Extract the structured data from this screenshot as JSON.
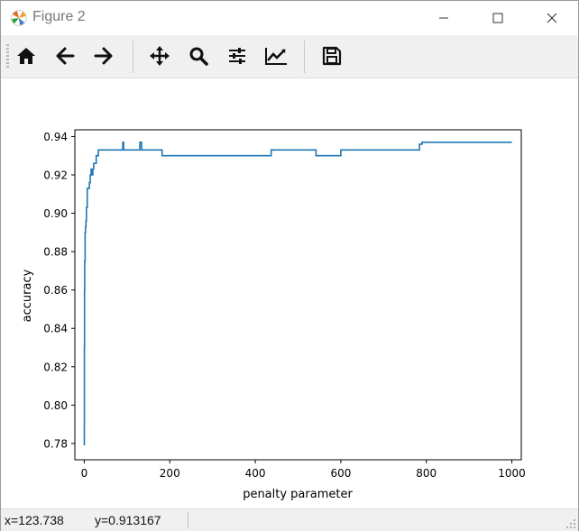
{
  "window": {
    "title": "Figure 2",
    "controls": [
      "minimize-icon",
      "maximize-icon",
      "close-icon"
    ]
  },
  "toolbar": {
    "tools": [
      {
        "icon": "home-icon",
        "label": "Home"
      },
      {
        "icon": "back-arrow-icon",
        "label": "Back"
      },
      {
        "icon": "forward-arrow-icon",
        "label": "Forward"
      },
      {
        "icon": "pan-move-icon",
        "label": "Pan"
      },
      {
        "icon": "zoom-magnifier-icon",
        "label": "Zoom"
      },
      {
        "icon": "subplots-sliders-icon",
        "label": "Subplots"
      },
      {
        "icon": "edit-curve-icon",
        "label": "Customize"
      },
      {
        "icon": "save-disk-icon",
        "label": "Save"
      }
    ]
  },
  "status": {
    "x_readout": "x=123.738",
    "y_readout": "y=0.913167"
  },
  "colors": {
    "line": "#1f77b4",
    "toolbar_bg": "#f0f0f0"
  },
  "chart_data": {
    "type": "line",
    "title": "",
    "xlabel": "penalty parameter",
    "ylabel": "accuracy",
    "xlim": [
      -22,
      1022
    ],
    "ylim": [
      0.7715,
      0.9435
    ],
    "xticks": [
      0,
      200,
      400,
      600,
      800,
      1000
    ],
    "xtick_labels": [
      "0",
      "200",
      "400",
      "600",
      "800",
      "1000"
    ],
    "yticks": [
      0.78,
      0.8,
      0.82,
      0.84,
      0.86,
      0.88,
      0.9,
      0.92,
      0.94
    ],
    "ytick_labels": [
      "0.78",
      "0.80",
      "0.82",
      "0.84",
      "0.86",
      "0.88",
      "0.90",
      "0.92",
      "0.94"
    ],
    "grid": false,
    "series": [
      {
        "x": [
          0.1,
          0.1,
          0.3,
          0.3,
          0.6,
          0.6,
          1,
          1,
          2,
          2,
          3,
          3,
          4,
          4,
          5,
          5,
          7,
          7,
          9,
          9,
          12,
          12,
          14,
          14,
          16,
          16,
          18,
          18,
          20,
          20,
          22,
          22,
          25,
          25,
          28,
          28,
          31,
          31,
          33,
          33,
          36,
          36,
          90,
          90,
          92,
          92,
          130,
          130,
          134,
          134,
          182,
          182,
          437,
          437,
          542,
          542,
          600,
          600,
          784,
          784,
          790,
          790,
          1000
        ],
        "y": [
          0.779,
          0.79,
          0.79,
          0.83,
          0.83,
          0.86,
          0.86,
          0.875,
          0.875,
          0.89,
          0.89,
          0.893,
          0.893,
          0.896,
          0.896,
          0.903,
          0.903,
          0.913,
          0.913,
          0.913,
          0.913,
          0.916,
          0.916,
          0.92,
          0.92,
          0.923,
          0.923,
          0.92,
          0.92,
          0.923,
          0.923,
          0.926,
          0.926,
          0.926,
          0.926,
          0.93,
          0.93,
          0.93,
          0.93,
          0.933,
          0.933,
          0.933,
          0.933,
          0.937,
          0.937,
          0.933,
          0.933,
          0.937,
          0.937,
          0.933,
          0.933,
          0.93,
          0.93,
          0.933,
          0.933,
          0.93,
          0.93,
          0.933,
          0.933,
          0.936,
          0.936,
          0.937,
          0.937
        ]
      }
    ]
  }
}
